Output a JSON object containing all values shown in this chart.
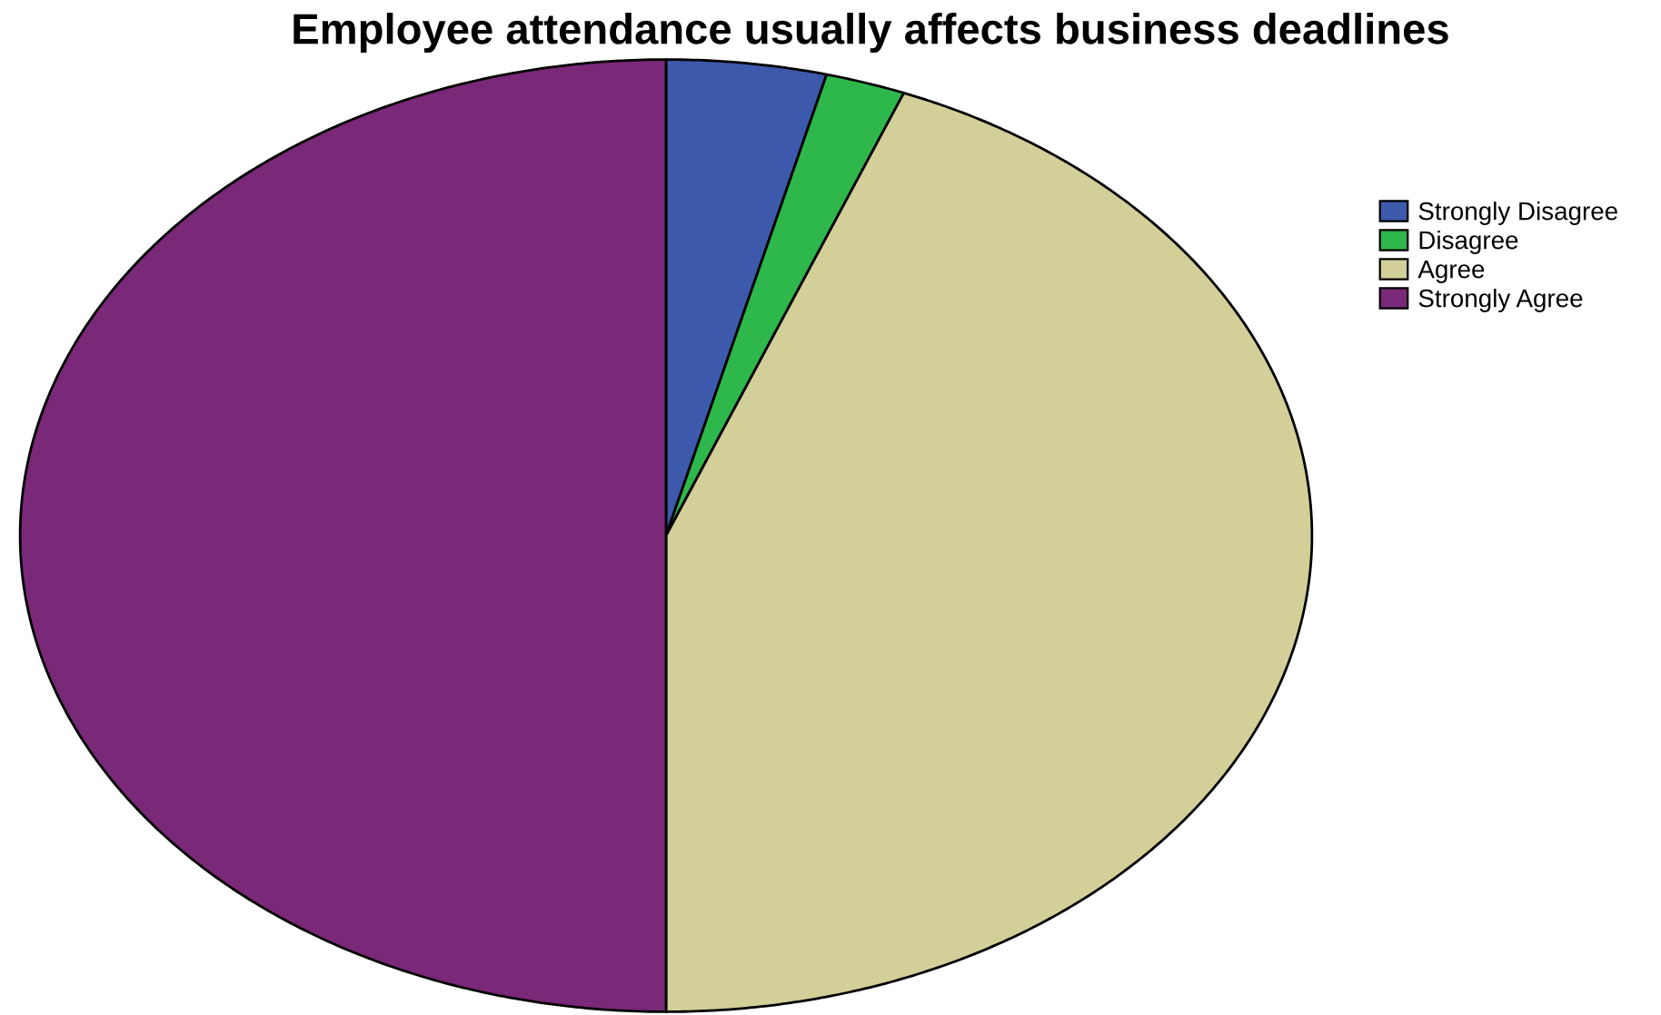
{
  "chart_data": {
    "type": "pie",
    "title": "Employee attendance usually affects business deadlines",
    "categories": [
      "Strongly Disagree",
      "Disagree",
      "Agree",
      "Strongly Agree"
    ],
    "values": [
      4,
      2,
      44,
      50
    ],
    "colors": [
      "#3d59ab",
      "#2eb84b",
      "#d3cf99",
      "#7a2878"
    ],
    "legend": "top right"
  }
}
